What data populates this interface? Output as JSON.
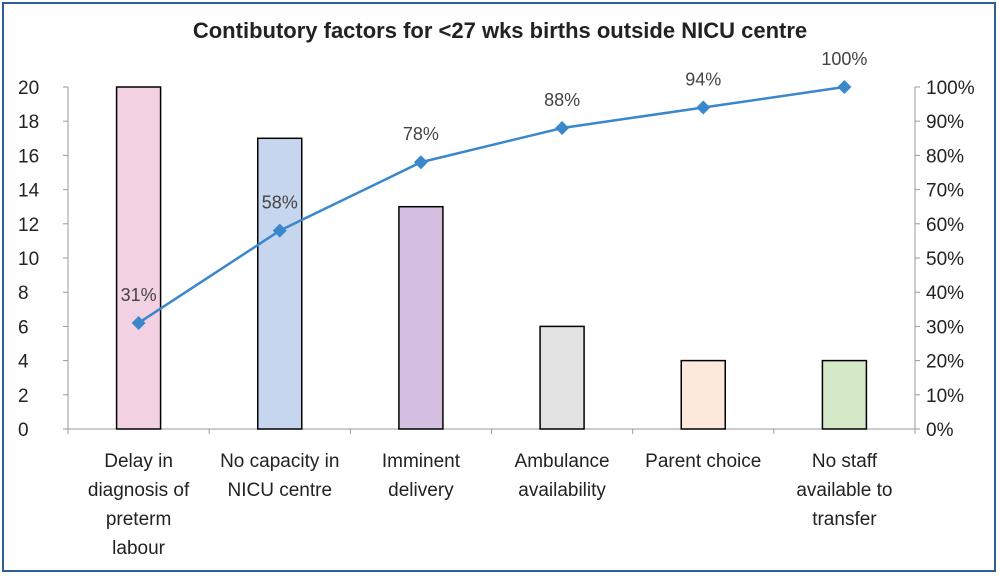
{
  "chart_data": {
    "type": "bar",
    "title": "Contibutory factors for <27 wks births outside NICU centre",
    "categories": [
      [
        "Delay in",
        "diagnosis of",
        "preterm",
        "labour"
      ],
      [
        "No capacity in",
        "NICU centre"
      ],
      [
        "Imminent",
        "delivery"
      ],
      [
        "Ambulance",
        "availability"
      ],
      [
        "Parent choice"
      ],
      [
        "No staff",
        "available to",
        "transfer"
      ]
    ],
    "series": [
      {
        "type": "bar",
        "values": [
          20,
          17,
          13,
          6,
          4,
          4
        ],
        "colors": [
          "#f2d1e3",
          "#c5d6ee",
          "#d5bfe0",
          "#e3e3e3",
          "#fde9dc",
          "#d3e9c7"
        ]
      },
      {
        "type": "line",
        "axis": "right",
        "values": [
          31,
          58,
          78,
          88,
          94,
          100
        ],
        "labels": [
          "31%",
          "58%",
          "78%",
          "88%",
          "94%",
          "100%"
        ],
        "color": "#3a87cc"
      }
    ],
    "y_left": {
      "min": 0,
      "max": 20,
      "step": 2,
      "ticks": [
        "0",
        "2",
        "4",
        "6",
        "8",
        "10",
        "12",
        "14",
        "16",
        "18",
        "20"
      ]
    },
    "y_right": {
      "min": 0,
      "max": 100,
      "step": 10,
      "ticks": [
        "0%",
        "10%",
        "20%",
        "30%",
        "40%",
        "50%",
        "60%",
        "70%",
        "80%",
        "90%",
        "100%"
      ]
    },
    "grid": false,
    "legend": "none"
  }
}
